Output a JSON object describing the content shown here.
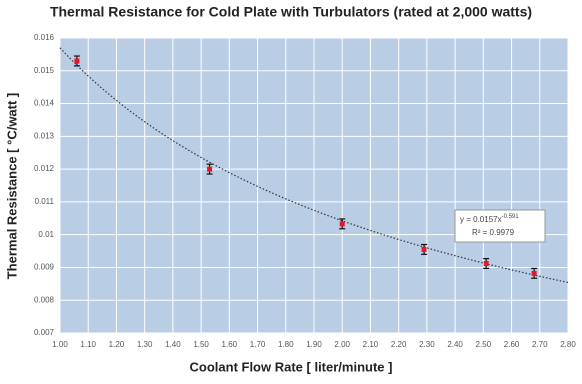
{
  "chart_data": {
    "type": "scatter",
    "title": "Thermal Resistance for Cold Plate with Turbulators (rated at 2,000 watts)",
    "x_label": "Coolant Flow Rate [ liter/minute ]",
    "y_label": "Thermal Resistance [ °C/watt ]",
    "xlim": [
      1.0,
      2.8
    ],
    "ylim": [
      0.007,
      0.016
    ],
    "xticks": [
      {
        "value": 1.0,
        "label": "1.00"
      },
      {
        "value": 1.1,
        "label": "1.10"
      },
      {
        "value": 1.2,
        "label": "1.20"
      },
      {
        "value": 1.3,
        "label": "1.30"
      },
      {
        "value": 1.4,
        "label": "1.40"
      },
      {
        "value": 1.5,
        "label": "1.50"
      },
      {
        "value": 1.6,
        "label": "1.60"
      },
      {
        "value": 1.7,
        "label": "1.70"
      },
      {
        "value": 1.8,
        "label": "1.80"
      },
      {
        "value": 1.9,
        "label": "1.90"
      },
      {
        "value": 2.0,
        "label": "2.00"
      },
      {
        "value": 2.1,
        "label": "2.10"
      },
      {
        "value": 2.2,
        "label": "2.20"
      },
      {
        "value": 2.3,
        "label": "2.30"
      },
      {
        "value": 2.4,
        "label": "2.40"
      },
      {
        "value": 2.5,
        "label": "2.50"
      },
      {
        "value": 2.6,
        "label": "2.60"
      },
      {
        "value": 2.7,
        "label": "2.70"
      },
      {
        "value": 2.8,
        "label": "2.80"
      }
    ],
    "yticks": [
      0.007,
      0.008,
      0.009,
      0.01,
      0.011,
      0.012,
      0.013,
      0.014,
      0.015,
      0.016
    ],
    "grid": true,
    "background": "#b9cde5",
    "series": [
      {
        "color": "#e8142a",
        "x": [
          1.06,
          1.53,
          2.0,
          2.29,
          2.51,
          2.68
        ],
        "values": [
          0.0153,
          0.012,
          0.01033,
          0.00955,
          0.00912,
          0.00882
        ],
        "errors": [
          0.00015,
          0.00015,
          0.00015,
          0.00015,
          0.00015,
          0.00015
        ]
      }
    ],
    "trendline": {
      "type": "power",
      "coefficient": 0.0157,
      "exponent": -0.591,
      "r_squared": 0.9979,
      "label": "y = 0.0157x",
      "label_exponent": "-0.591",
      "r_squared_label": "R² = 0.9979"
    }
  }
}
